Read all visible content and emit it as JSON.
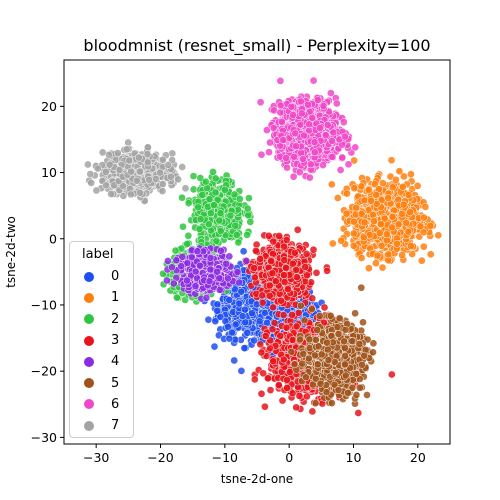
{
  "chart_data": {
    "type": "scatter",
    "title": "bloodmnist (resnet_small) - Perplexity=100",
    "xlabel": "tsne-2d-one",
    "ylabel": "tsne-2d-two",
    "xlim": [
      -35,
      25
    ],
    "ylim": [
      -31,
      27
    ],
    "xticks": [
      "−30",
      "−20",
      "−10",
      "0",
      "10",
      "20"
    ],
    "yticks": [
      "−30",
      "−20",
      "−10",
      "0",
      "10",
      "20"
    ],
    "xtick_values": [
      -30,
      -20,
      -10,
      0,
      10,
      20
    ],
    "ytick_values": [
      -30,
      -20,
      -10,
      0,
      10,
      20
    ],
    "grid": false,
    "legend": {
      "title": "label",
      "placement": "lower-left"
    },
    "series": [
      {
        "name": "0",
        "color": "#1f4ef0",
        "points_approx": 1200,
        "clusters": [
          {
            "center": [
              -6,
              -10
            ],
            "spread": [
              4.5,
              4.5
            ]
          },
          {
            "center": [
              0,
              -12
            ],
            "spread": [
              3.5,
              3.5
            ]
          }
        ]
      },
      {
        "name": "1",
        "color": "#ff7f0e",
        "points_approx": 1200,
        "clusters": [
          {
            "center": [
              15,
              3
            ],
            "spread": [
              4.5,
              4.5
            ]
          }
        ]
      },
      {
        "name": "2",
        "color": "#2ec63e",
        "points_approx": 750,
        "clusters": [
          {
            "center": [
              -11,
              4
            ],
            "spread": [
              3.5,
              4.5
            ]
          },
          {
            "center": [
              -15,
              -5
            ],
            "spread": [
              3,
              3
            ]
          }
        ]
      },
      {
        "name": "3",
        "color": "#e8131b",
        "points_approx": 1800,
        "clusters": [
          {
            "center": [
              3,
              -18
            ],
            "spread": [
              5.5,
              5
            ]
          },
          {
            "center": [
              -1,
              -5
            ],
            "spread": [
              3.5,
              3.5
            ]
          }
        ]
      },
      {
        "name": "4",
        "color": "#8b2be2",
        "points_approx": 600,
        "clusters": [
          {
            "center": [
              -13,
              -5
            ],
            "spread": [
              3.5,
              2.5
            ]
          }
        ]
      },
      {
        "name": "5",
        "color": "#a0521a",
        "points_approx": 700,
        "clusters": [
          {
            "center": [
              7,
              -18
            ],
            "spread": [
              4,
              4.5
            ]
          }
        ]
      },
      {
        "name": "6",
        "color": "#f046c8",
        "points_approx": 1500,
        "clusters": [
          {
            "center": [
              3,
              16
            ],
            "spread": [
              4,
              4
            ]
          }
        ]
      },
      {
        "name": "7",
        "color": "#a3a3a3",
        "points_approx": 700,
        "clusters": [
          {
            "center": [
              -24,
              10
            ],
            "spread": [
              4.5,
              2.5
            ]
          }
        ]
      }
    ]
  }
}
